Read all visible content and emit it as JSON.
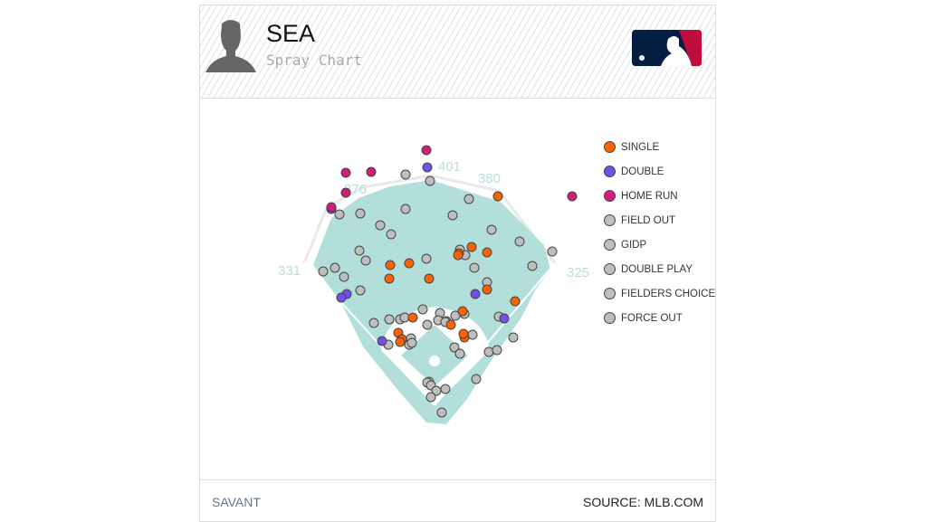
{
  "header": {
    "team": "SEA",
    "subtitle": "Spray Chart",
    "logo_text": "MLB"
  },
  "footer": {
    "left": "SAVANT",
    "right": "SOURCE: MLB.COM"
  },
  "chart_data": {
    "type": "scatter",
    "title": "Spray Chart",
    "fence_distances": [
      "401",
      "380",
      "376",
      "331",
      "325"
    ],
    "legend": [
      {
        "label": "SINGLE",
        "color": "#fa6400"
      },
      {
        "label": "DOUBLE",
        "color": "#7350e6"
      },
      {
        "label": "HOME RUN",
        "color": "#d21e78"
      },
      {
        "label": "FIELD OUT",
        "color": "#bebebe"
      },
      {
        "label": "GIDP",
        "color": "#bebebe"
      },
      {
        "label": "DOUBLE PLAY",
        "color": "#bebebe"
      },
      {
        "label": "FIELDERS CHOICE OUT",
        "color": "#bebebe"
      },
      {
        "label": "FORCE OUT",
        "color": "#bebebe"
      }
    ],
    "field_color": "#b3dfdb",
    "points": {
      "HOME RUN": [
        [
          -9,
          290
        ],
        [
          -98,
          265
        ],
        [
          -70,
          266
        ],
        [
          -98,
          243
        ],
        [
          -114,
          227
        ],
        [
          152,
          239
        ]
      ],
      "DOUBLE": [
        [
          -8,
          271
        ],
        [
          -114,
          225
        ],
        [
          -97,
          131
        ],
        [
          -103,
          127
        ],
        [
          45,
          131
        ],
        [
          77,
          104
        ],
        [
          -58,
          79
        ]
      ],
      "SINGLE": [
        [
          70,
          239
        ],
        [
          41,
          183
        ],
        [
          27,
          176
        ],
        [
          58,
          177
        ],
        [
          26,
          174
        ],
        [
          -49,
          163
        ],
        [
          -28,
          165
        ],
        [
          -50,
          148
        ],
        [
          -6,
          148
        ],
        [
          58,
          136
        ],
        [
          89,
          123
        ],
        [
          31,
          112
        ],
        [
          -24,
          105
        ],
        [
          18,
          97
        ],
        [
          -40,
          88
        ],
        [
          -36,
          81
        ],
        [
          -38,
          78
        ],
        [
          33,
          83
        ],
        [
          32,
          87
        ]
      ],
      "OUT": [
        [
          -32,
          263
        ],
        [
          -5,
          256
        ],
        [
          38,
          236
        ],
        [
          -105,
          219
        ],
        [
          -82,
          220
        ],
        [
          -32,
          225
        ],
        [
          20,
          218
        ],
        [
          63,
          202
        ],
        [
          -60,
          207
        ],
        [
          -48,
          197
        ],
        [
          94,
          189
        ],
        [
          -83,
          179
        ],
        [
          -76,
          168
        ],
        [
          -9,
          170
        ],
        [
          28,
          180
        ],
        [
          130,
          178
        ],
        [
          108,
          162
        ],
        [
          -123,
          156
        ],
        [
          -110,
          160
        ],
        [
          -100,
          150
        ],
        [
          44,
          160
        ],
        [
          58,
          144
        ],
        [
          -82,
          135
        ],
        [
          34,
          174
        ],
        [
          -13,
          114
        ],
        [
          -67,
          99
        ],
        [
          -50,
          103
        ],
        [
          -38,
          103
        ],
        [
          -33,
          105
        ],
        [
          6,
          110
        ],
        [
          4,
          102
        ],
        [
          13,
          101
        ],
        [
          23,
          107
        ],
        [
          12,
          100
        ],
        [
          33,
          109
        ],
        [
          71,
          106
        ],
        [
          -8,
          97
        ],
        [
          -26,
          82
        ],
        [
          -28,
          75
        ],
        [
          -25,
          77
        ],
        [
          -51,
          75
        ],
        [
          22,
          72
        ],
        [
          28,
          65
        ],
        [
          42,
          86
        ],
        [
          87,
          83
        ],
        [
          60,
          67
        ],
        [
          69,
          69
        ],
        [
          -6,
          34
        ],
        [
          -8,
          33
        ],
        [
          -4,
          30
        ],
        [
          2,
          24
        ],
        [
          12,
          26
        ],
        [
          46,
          37
        ],
        [
          -4,
          17
        ],
        [
          8,
          0
        ]
      ]
    }
  }
}
